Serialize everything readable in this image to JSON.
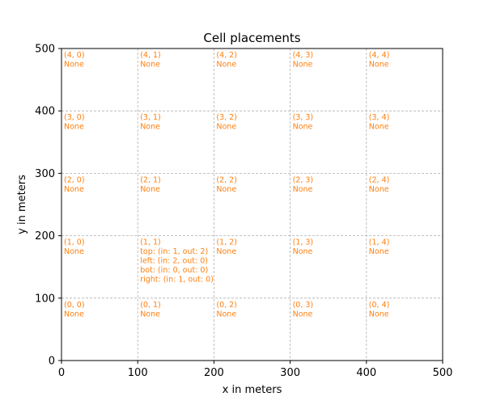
{
  "chart_data": {
    "type": "scatter",
    "title": "Cell placements",
    "xlabel": "x in meters",
    "ylabel": "y in meters",
    "xlim": [
      0,
      500
    ],
    "ylim": [
      0,
      500
    ],
    "x_ticks": [
      0,
      100,
      200,
      300,
      400,
      500
    ],
    "y_ticks": [
      0,
      100,
      200,
      300,
      400,
      500
    ],
    "x_tick_labels": [
      "0",
      "100",
      "200",
      "300",
      "400",
      "500"
    ],
    "y_tick_labels": [
      "0",
      "100",
      "200",
      "300",
      "400",
      "500"
    ],
    "grid": true,
    "grid_style": "dashed",
    "grid_color": "#b0b0b0",
    "text_color": "#ff7f0e",
    "cells": [
      {
        "x": 0,
        "y": 0,
        "lines": [
          "(0, 0)",
          "None"
        ]
      },
      {
        "x": 100,
        "y": 0,
        "lines": [
          "(0, 1)",
          "None"
        ]
      },
      {
        "x": 200,
        "y": 0,
        "lines": [
          "(0, 2)",
          "None"
        ]
      },
      {
        "x": 300,
        "y": 0,
        "lines": [
          "(0, 3)",
          "None"
        ]
      },
      {
        "x": 400,
        "y": 0,
        "lines": [
          "(0, 4)",
          "None"
        ]
      },
      {
        "x": 0,
        "y": 100,
        "lines": [
          "(1, 0)",
          "None"
        ]
      },
      {
        "x": 100,
        "y": 100,
        "lines": [
          "(1, 1)",
          "top: (in: 1, out: 2)",
          "left: (in: 2, out: 0)",
          "bot: (in: 0, out: 0)",
          "right: (in: 1, out: 0)"
        ]
      },
      {
        "x": 200,
        "y": 100,
        "lines": [
          "(1, 2)",
          "None"
        ]
      },
      {
        "x": 300,
        "y": 100,
        "lines": [
          "(1, 3)",
          "None"
        ]
      },
      {
        "x": 400,
        "y": 100,
        "lines": [
          "(1, 4)",
          "None"
        ]
      },
      {
        "x": 0,
        "y": 200,
        "lines": [
          "(2, 0)",
          "None"
        ]
      },
      {
        "x": 100,
        "y": 200,
        "lines": [
          "(2, 1)",
          "None"
        ]
      },
      {
        "x": 200,
        "y": 200,
        "lines": [
          "(2, 2)",
          "None"
        ]
      },
      {
        "x": 300,
        "y": 200,
        "lines": [
          "(2, 3)",
          "None"
        ]
      },
      {
        "x": 400,
        "y": 200,
        "lines": [
          "(2, 4)",
          "None"
        ]
      },
      {
        "x": 0,
        "y": 300,
        "lines": [
          "(3, 0)",
          "None"
        ]
      },
      {
        "x": 100,
        "y": 300,
        "lines": [
          "(3, 1)",
          "None"
        ]
      },
      {
        "x": 200,
        "y": 300,
        "lines": [
          "(3, 2)",
          "None"
        ]
      },
      {
        "x": 300,
        "y": 300,
        "lines": [
          "(3, 3)",
          "None"
        ]
      },
      {
        "x": 400,
        "y": 300,
        "lines": [
          "(3, 4)",
          "None"
        ]
      },
      {
        "x": 0,
        "y": 400,
        "lines": [
          "(4, 0)",
          "None"
        ]
      },
      {
        "x": 100,
        "y": 400,
        "lines": [
          "(4, 1)",
          "None"
        ]
      },
      {
        "x": 200,
        "y": 400,
        "lines": [
          "(4, 2)",
          "None"
        ]
      },
      {
        "x": 300,
        "y": 400,
        "lines": [
          "(4, 3)",
          "None"
        ]
      },
      {
        "x": 400,
        "y": 400,
        "lines": [
          "(4, 4)",
          "None"
        ]
      }
    ]
  }
}
